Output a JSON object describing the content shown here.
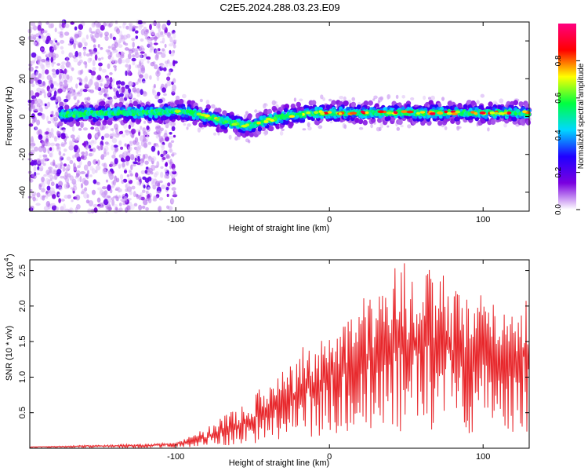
{
  "title": "C2E5.2024.288.03.23.E09",
  "chart_data": [
    {
      "type": "heatmap",
      "xlabel": "Height of straight line (km)",
      "ylabel": "Frequency (Hz)",
      "xlim": [
        -195,
        130
      ],
      "ylim": [
        -50,
        50
      ],
      "xticks": [
        -100,
        0,
        100
      ],
      "xtick_labels": [
        "-100",
        "0",
        "100"
      ],
      "yticks": [
        -40,
        -20,
        0,
        20,
        40
      ],
      "ytick_labels": [
        "-40",
        "-20",
        "0",
        "20",
        "40"
      ],
      "colorbar": {
        "label": "Normalized spectral amplitude",
        "range": [
          0.0,
          1.0
        ],
        "ticks": [
          0.0,
          0.2,
          0.4,
          0.6,
          0.8
        ],
        "tick_labels": [
          "0.0",
          "0.2",
          "0.4",
          "0.6",
          "0.8"
        ],
        "colors": [
          "#ffffff",
          "#7a00e0",
          "#2000ff",
          "#00d8ff",
          "#00ff40",
          "#ffff00",
          "#ff0000",
          "#ff0080"
        ]
      },
      "ridge": {
        "x": [
          -175,
          -160,
          -140,
          -120,
          -100,
          -90,
          -80,
          -70,
          -60,
          -50,
          -45,
          -40,
          -30,
          -20,
          -10,
          0,
          20,
          40,
          60,
          80,
          100,
          130
        ],
        "y": [
          1,
          1.5,
          2,
          2,
          3,
          2,
          0,
          -2,
          -4,
          -5,
          -3,
          -2,
          0,
          1,
          2,
          2,
          2,
          2,
          2,
          2,
          2,
          2
        ]
      },
      "grid": false
    },
    {
      "type": "line",
      "xlabel": "Height of straight line (km)",
      "ylabel": "SNR (10 * v/v)",
      "yscale_label": "(x10",
      "yscale_exponent": "4",
      "xlim": [
        -195,
        130
      ],
      "ylim": [
        0,
        2.65
      ],
      "xticks": [
        -100,
        0,
        100
      ],
      "xtick_labels": [
        "-100",
        "0",
        "100"
      ],
      "yticks": [
        0.5,
        1.0,
        1.5,
        2.0,
        2.5
      ],
      "ytick_labels": [
        "0.5",
        "1.0",
        "1.5",
        "2.0",
        "2.5"
      ],
      "series": [
        {
          "color": "#e8282c",
          "x": [
            -195,
            -160,
            -120,
            -100,
            -90,
            -80,
            -70,
            -60,
            -50,
            -40,
            -30,
            -20,
            -10,
            0,
            10,
            20,
            30,
            40,
            50,
            60,
            70,
            80,
            90,
            100,
            110,
            120,
            125,
            130
          ],
          "y": [
            0.02,
            0.03,
            0.04,
            0.06,
            0.1,
            0.15,
            0.22,
            0.3,
            0.42,
            0.5,
            0.65,
            0.8,
            0.9,
            1.05,
            1.1,
            1.2,
            1.3,
            1.45,
            1.5,
            1.55,
            1.45,
            1.35,
            1.3,
            1.3,
            1.35,
            1.4,
            1.3,
            1.25
          ],
          "envelope": [
            0.02,
            0.04,
            0.06,
            0.08,
            0.18,
            0.3,
            0.45,
            0.55,
            0.75,
            0.95,
            1.2,
            1.4,
            1.55,
            1.6,
            1.9,
            2.2,
            2.35,
            2.55,
            2.65,
            2.45,
            2.6,
            2.3,
            2.1,
            2.2,
            2.0,
            2.1,
            2.05,
            2.1
          ]
        }
      ],
      "grid": false
    }
  ]
}
